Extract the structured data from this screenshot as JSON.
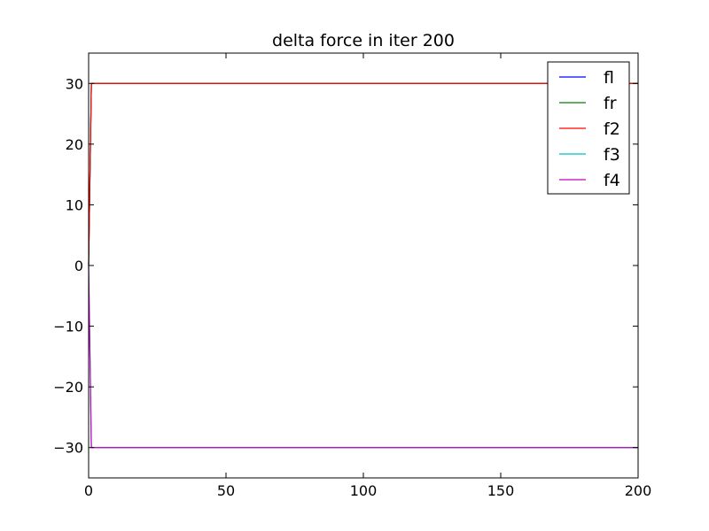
{
  "chart_data": {
    "type": "line",
    "title": "delta force in iter 200",
    "xlabel": "",
    "ylabel": "",
    "xlim": [
      0,
      200
    ],
    "ylim": [
      -35,
      35
    ],
    "xticks": [
      0,
      50,
      100,
      150,
      200
    ],
    "yticks": [
      30,
      20,
      10,
      0,
      -10,
      -20,
      -30
    ],
    "ytick_labels": [
      "30",
      "20",
      "10",
      "0",
      "−10",
      "−20",
      "−30"
    ],
    "grid": false,
    "legend_position": "top-right",
    "series": [
      {
        "name": "fl",
        "color": "#0000ff",
        "x": [
          0,
          1,
          200
        ],
        "y": [
          0,
          30,
          30
        ]
      },
      {
        "name": "fr",
        "color": "#008000",
        "x": [
          0,
          1,
          200
        ],
        "y": [
          0,
          30,
          30
        ]
      },
      {
        "name": "f2",
        "color": "#ff0000",
        "x": [
          0,
          1,
          200
        ],
        "y": [
          0,
          30,
          30
        ]
      },
      {
        "name": "f3",
        "color": "#00bfbf",
        "x": [
          0,
          1,
          200
        ],
        "y": [
          0,
          -30,
          -30
        ]
      },
      {
        "name": "f4",
        "color": "#bf00bf",
        "x": [
          0,
          1,
          200
        ],
        "y": [
          0,
          -30,
          -30
        ]
      }
    ]
  }
}
